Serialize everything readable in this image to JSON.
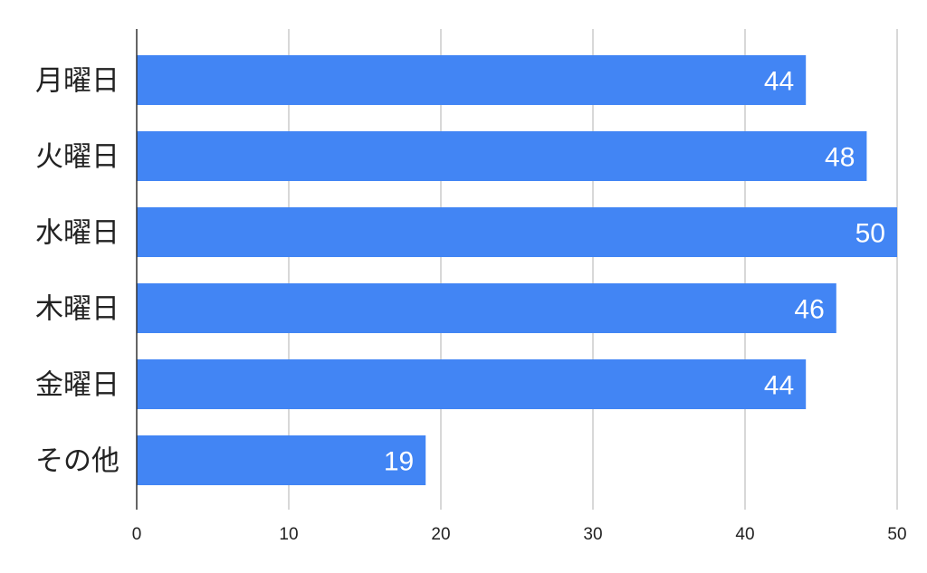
{
  "chart_data": {
    "type": "bar",
    "orientation": "horizontal",
    "categories": [
      "月曜日",
      "火曜日",
      "水曜日",
      "木曜日",
      "金曜日",
      "その他"
    ],
    "values": [
      44,
      48,
      50,
      46,
      44,
      19
    ],
    "data_labels": [
      "44",
      "48",
      "50",
      "46",
      "44",
      "19"
    ],
    "xlim": [
      0,
      50
    ],
    "x_ticks": [
      0,
      10,
      20,
      30,
      40,
      50
    ],
    "x_tick_labels": [
      "0",
      "10",
      "20",
      "30",
      "40",
      "50"
    ],
    "grid": "vertical",
    "legend": "none",
    "bar_color": "#4285f4",
    "title": "",
    "xlabel": "",
    "ylabel": ""
  }
}
